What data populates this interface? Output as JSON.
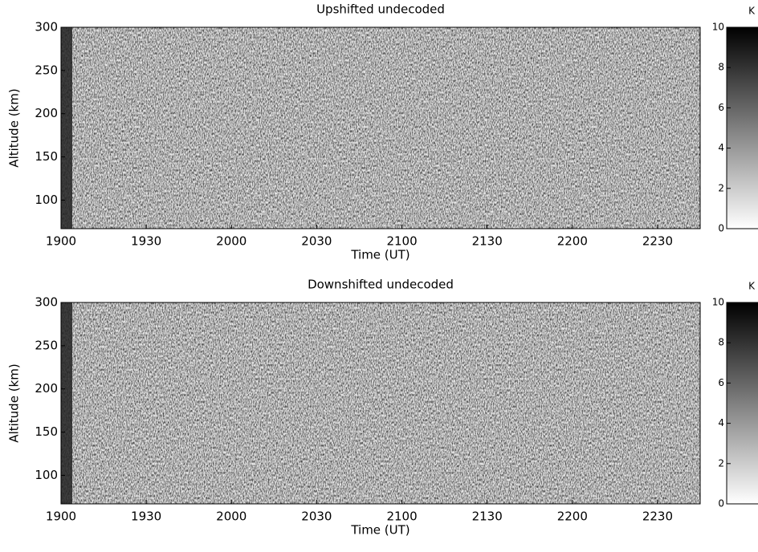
{
  "chart_data": [
    {
      "type": "heatmap",
      "title": "Upshifted undecoded",
      "xlabel": "Time  (UT)",
      "ylabel": "Altitude (km)",
      "xlim": [
        19.0,
        22.75
      ],
      "ylim": [
        67,
        300
      ],
      "xticks": [
        {
          "value": 19.0,
          "label": "1900"
        },
        {
          "value": 19.5,
          "label": "1930"
        },
        {
          "value": 20.0,
          "label": "2000"
        },
        {
          "value": 20.5,
          "label": "2030"
        },
        {
          "value": 21.0,
          "label": "2100"
        },
        {
          "value": 21.5,
          "label": "2130"
        },
        {
          "value": 22.0,
          "label": "2200"
        },
        {
          "value": 22.5,
          "label": "2230"
        }
      ],
      "yticks": [
        100,
        150,
        200,
        250,
        300
      ],
      "colorbar": {
        "label": "K",
        "lim": [
          0,
          10
        ],
        "ticks": [
          0,
          2,
          4,
          6,
          8,
          10
        ],
        "colors": [
          "#ffffff",
          "#000000"
        ]
      }
    },
    {
      "type": "heatmap",
      "title": "Downshifted undecoded",
      "xlabel": "Time  (UT)",
      "ylabel": "Altitude (km)",
      "xlim": [
        19.0,
        22.75
      ],
      "ylim": [
        67,
        300
      ],
      "xticks": [
        {
          "value": 19.0,
          "label": "1900"
        },
        {
          "value": 19.5,
          "label": "1930"
        },
        {
          "value": 20.0,
          "label": "2000"
        },
        {
          "value": 20.5,
          "label": "2030"
        },
        {
          "value": 21.0,
          "label": "2100"
        },
        {
          "value": 21.5,
          "label": "2130"
        },
        {
          "value": 22.0,
          "label": "2200"
        },
        {
          "value": 22.5,
          "label": "2230"
        }
      ],
      "yticks": [
        100,
        150,
        200,
        250,
        300
      ],
      "colorbar": {
        "label": "K",
        "lim": [
          0,
          10
        ],
        "ticks": [
          0,
          2,
          4,
          6,
          8,
          10
        ],
        "colors": [
          "#ffffff",
          "#000000"
        ]
      }
    }
  ]
}
